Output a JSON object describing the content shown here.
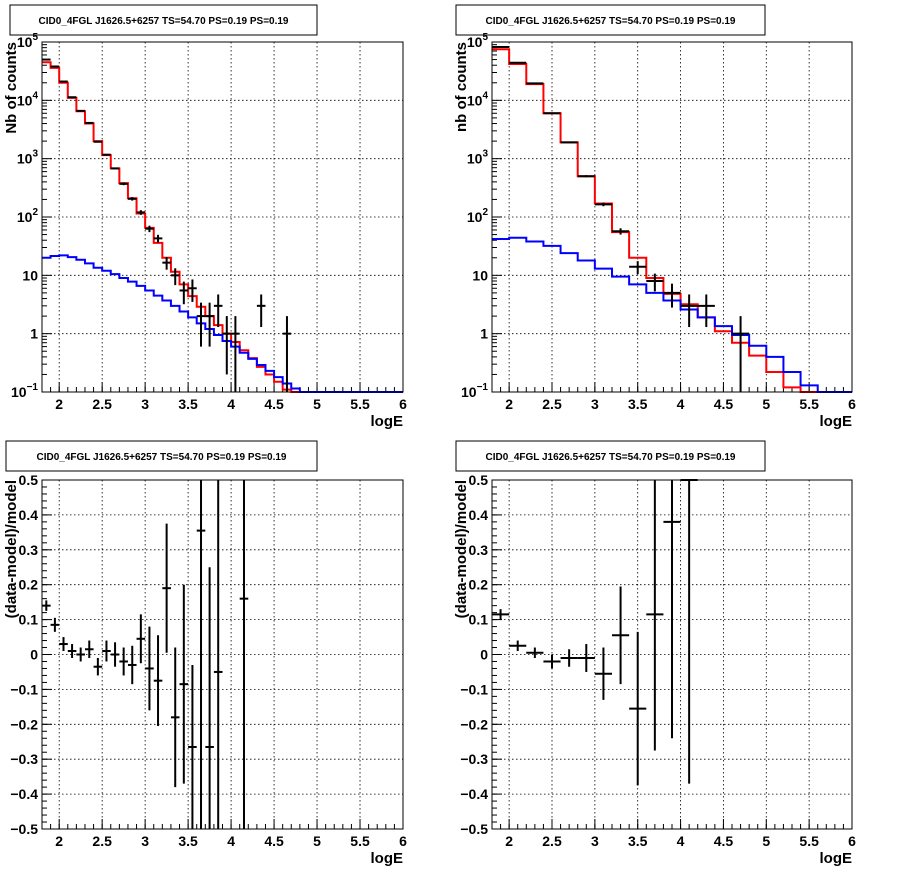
{
  "chart_data": [
    {
      "type": "step-line-with-errorbars",
      "title": "CID0_4FGL J1626.5+6257 TS=54.70 PS=0.19 PS=0.19",
      "xlabel": "logE",
      "ylabel": "Nb of counts",
      "xlim": [
        1.8,
        6.0
      ],
      "ylim": [
        0.1,
        100000
      ],
      "yscale": "log",
      "xticks": [
        2,
        2.5,
        3,
        3.5,
        4,
        4.5,
        5,
        5.5,
        6
      ],
      "xtick_labels": [
        "2",
        "2.5",
        "3",
        "3.5",
        "4",
        "4.5",
        "5",
        "5.5",
        "6"
      ],
      "yticks": [
        0.1,
        1,
        10,
        100,
        1000,
        10000,
        100000
      ],
      "ytick_labels": [
        {
          "base": "10",
          "exp": "−1"
        },
        {
          "base": "1",
          "exp": ""
        },
        {
          "base": "10",
          "exp": ""
        },
        {
          "base": "10",
          "exp": "2"
        },
        {
          "base": "10",
          "exp": "3"
        },
        {
          "base": "10",
          "exp": "4"
        },
        {
          "base": "10",
          "exp": "5"
        }
      ],
      "grid": true,
      "bin_edges": [
        1.8,
        1.9,
        2.0,
        2.1,
        2.2,
        2.3,
        2.4,
        2.5,
        2.6,
        2.7,
        2.8,
        2.9,
        3.0,
        3.1,
        3.2,
        3.3,
        3.4,
        3.5,
        3.6,
        3.7,
        3.8,
        3.9,
        4.0,
        4.1,
        4.2,
        4.3,
        4.4,
        4.5,
        4.6,
        4.7,
        4.8,
        4.9,
        5.0,
        5.1,
        5.2,
        5.3,
        5.4,
        5.5,
        5.6,
        5.7,
        5.8,
        5.9,
        6.0
      ],
      "series": [
        {
          "color": "#ff0000",
          "style": "step",
          "values": [
            45000,
            36000,
            20000,
            11000,
            6500,
            4000,
            2000,
            1150,
            680,
            380,
            210,
            115,
            65,
            36,
            20,
            11.5,
            7,
            4.4,
            2.9,
            2.0,
            1.4,
            1.0,
            0.72,
            0.52,
            0.38,
            0.27,
            0.2,
            0.15,
            0.11,
            0.1,
            0.1,
            0.1,
            0.1,
            0.1,
            0.1,
            0.1,
            0.1,
            0.1,
            0.1,
            0.1,
            0.1,
            0.1
          ]
        },
        {
          "color": "#0000ff",
          "style": "step",
          "values": [
            20,
            21.5,
            22,
            20.5,
            18.5,
            16,
            13.5,
            12,
            10.5,
            9,
            7.8,
            6.6,
            5.5,
            4.5,
            3.7,
            3.0,
            2.4,
            1.9,
            1.5,
            1.2,
            0.95,
            0.75,
            0.6,
            0.47,
            0.37,
            0.29,
            0.23,
            0.18,
            0.14,
            0.115,
            0.1,
            0.1,
            0.1,
            0.1,
            0.1,
            0.1,
            0.1,
            0.1,
            0.1,
            0.1,
            0.1,
            0.1
          ]
        }
      ],
      "data_points": {
        "color": "#000000",
        "points": [
          {
            "x": 1.85,
            "y": 50000,
            "lo": 49500,
            "hi": 50500,
            "xw": 0.05
          },
          {
            "x": 1.95,
            "y": 38000,
            "lo": 37500,
            "hi": 38500,
            "xw": 0.05
          },
          {
            "x": 2.05,
            "y": 21000,
            "lo": 20700,
            "hi": 21300,
            "xw": 0.05
          },
          {
            "x": 2.15,
            "y": 11300,
            "lo": 11100,
            "hi": 11500,
            "xw": 0.05
          },
          {
            "x": 2.25,
            "y": 6600,
            "lo": 6500,
            "hi": 6700,
            "xw": 0.05
          },
          {
            "x": 2.35,
            "y": 4100,
            "lo": 4030,
            "hi": 4170,
            "xw": 0.05
          },
          {
            "x": 2.45,
            "y": 1950,
            "lo": 1900,
            "hi": 2000,
            "xw": 0.05
          },
          {
            "x": 2.55,
            "y": 1170,
            "lo": 1135,
            "hi": 1205,
            "xw": 0.05
          },
          {
            "x": 2.65,
            "y": 680,
            "lo": 655,
            "hi": 705,
            "xw": 0.05
          },
          {
            "x": 2.75,
            "y": 370,
            "lo": 351,
            "hi": 389,
            "xw": 0.05
          },
          {
            "x": 2.85,
            "y": 205,
            "lo": 191,
            "hi": 219,
            "xw": 0.05
          },
          {
            "x": 2.95,
            "y": 120,
            "lo": 109,
            "hi": 131,
            "xw": 0.05
          },
          {
            "x": 3.05,
            "y": 63,
            "lo": 55,
            "hi": 71,
            "xw": 0.05
          },
          {
            "x": 3.15,
            "y": 43,
            "lo": 36.5,
            "hi": 49.5,
            "xw": 0.05
          },
          {
            "x": 3.25,
            "y": 16.5,
            "lo": 12.5,
            "hi": 20.5,
            "xw": 0.05
          },
          {
            "x": 3.35,
            "y": 10,
            "lo": 6.8,
            "hi": 13.2,
            "xw": 0.05
          },
          {
            "x": 3.45,
            "y": 5.5,
            "lo": 3.2,
            "hi": 7.8,
            "xw": 0.05
          },
          {
            "x": 3.55,
            "y": 6,
            "lo": 3.5,
            "hi": 8.5,
            "xw": 0.05
          },
          {
            "x": 3.65,
            "y": 2,
            "lo": 0.6,
            "hi": 3.4,
            "xw": 0.05
          },
          {
            "x": 3.75,
            "y": 2,
            "lo": 0.6,
            "hi": 3.4,
            "xw": 0.05
          },
          {
            "x": 3.85,
            "y": 3,
            "lo": 1.3,
            "hi": 4.7,
            "xw": 0.05
          },
          {
            "x": 3.95,
            "y": 1,
            "lo": 0.2,
            "hi": 2.0,
            "xw": 0.05
          },
          {
            "x": 4.05,
            "y": 1,
            "lo": 0.1,
            "hi": 2.0,
            "xw": 0.05
          },
          {
            "x": 4.35,
            "y": 3,
            "lo": 1.3,
            "hi": 4.7,
            "xw": 0.05
          },
          {
            "x": 4.65,
            "y": 1,
            "lo": 0.1,
            "hi": 2.0,
            "xw": 0.05
          }
        ]
      }
    },
    {
      "type": "step-line-with-errorbars",
      "title": "CID0_4FGL J1626.5+6257 TS=54.70 PS=0.19 PS=0.19",
      "xlabel": "logE",
      "ylabel": "nb of counts",
      "xlim": [
        1.8,
        6.0
      ],
      "ylim": [
        0.1,
        100000
      ],
      "yscale": "log",
      "xticks": [
        2,
        2.5,
        3,
        3.5,
        4,
        4.5,
        5,
        5.5,
        6
      ],
      "xtick_labels": [
        "2",
        "2.5",
        "3",
        "3.5",
        "4",
        "4.5",
        "5",
        "5.5",
        "6"
      ],
      "yticks": [
        0.1,
        1,
        10,
        100,
        1000,
        10000,
        100000
      ],
      "ytick_labels": [
        {
          "base": "10",
          "exp": "−1"
        },
        {
          "base": "1",
          "exp": ""
        },
        {
          "base": "10",
          "exp": ""
        },
        {
          "base": "10",
          "exp": "2"
        },
        {
          "base": "10",
          "exp": "3"
        },
        {
          "base": "10",
          "exp": "4"
        },
        {
          "base": "10",
          "exp": "5"
        }
      ],
      "grid": true,
      "bin_edges": [
        1.8,
        2.0,
        2.2,
        2.4,
        2.6,
        2.8,
        3.0,
        3.2,
        3.4,
        3.6,
        3.8,
        4.0,
        4.2,
        4.4,
        4.6,
        4.8,
        5.0,
        5.2,
        5.4,
        5.6,
        5.8,
        6.0
      ],
      "series": [
        {
          "color": "#ff0000",
          "style": "step",
          "values": [
            75000,
            42000,
            19000,
            6000,
            1900,
            500,
            170,
            55,
            20,
            9,
            4.8,
            3.2,
            1.9,
            1.1,
            0.7,
            0.42,
            0.22,
            0.12,
            0.1,
            0.1,
            0.1
          ]
        },
        {
          "color": "#0000ff",
          "style": "step",
          "values": [
            42,
            44,
            38,
            32,
            24,
            18,
            13,
            9.5,
            7,
            5,
            3.7,
            2.6,
            1.9,
            1.35,
            0.95,
            0.62,
            0.4,
            0.22,
            0.13,
            0.1,
            0.1
          ]
        }
      ],
      "data_points": {
        "color": "#000000",
        "points": [
          {
            "x": 1.9,
            "y": 82000,
            "lo": 81400,
            "hi": 82600,
            "xw": 0.1
          },
          {
            "x": 2.1,
            "y": 44000,
            "lo": 43600,
            "hi": 44400,
            "xw": 0.1
          },
          {
            "x": 2.3,
            "y": 19500,
            "lo": 19250,
            "hi": 19750,
            "xw": 0.1
          },
          {
            "x": 2.5,
            "y": 6000,
            "lo": 5920,
            "hi": 6080,
            "xw": 0.1
          },
          {
            "x": 2.7,
            "y": 1900,
            "lo": 1860,
            "hi": 1940,
            "xw": 0.1
          },
          {
            "x": 2.9,
            "y": 500,
            "lo": 480,
            "hi": 520,
            "xw": 0.1
          },
          {
            "x": 3.1,
            "y": 165,
            "lo": 153,
            "hi": 177,
            "xw": 0.1
          },
          {
            "x": 3.3,
            "y": 57,
            "lo": 50,
            "hi": 64,
            "xw": 0.1
          },
          {
            "x": 3.5,
            "y": 14,
            "lo": 10.5,
            "hi": 17.5,
            "xw": 0.1
          },
          {
            "x": 3.7,
            "y": 8,
            "lo": 5.3,
            "hi": 10.7,
            "xw": 0.1
          },
          {
            "x": 3.9,
            "y": 5,
            "lo": 2.8,
            "hi": 7.2,
            "xw": 0.1
          },
          {
            "x": 4.1,
            "y": 3,
            "lo": 1.3,
            "hi": 4.7,
            "xw": 0.1
          },
          {
            "x": 4.3,
            "y": 3,
            "lo": 1.3,
            "hi": 4.7,
            "xw": 0.1
          },
          {
            "x": 4.7,
            "y": 1,
            "lo": 0.1,
            "hi": 2.0,
            "xw": 0.1
          }
        ]
      }
    },
    {
      "type": "errorbars",
      "title": "CID0_4FGL J1626.5+6257 TS=54.70 PS=0.19 PS=0.19",
      "xlabel": "logE",
      "ylabel": "(data-model)/model",
      "xlim": [
        1.8,
        6.0
      ],
      "ylim": [
        -0.5,
        0.5
      ],
      "yscale": "linear",
      "xticks": [
        2,
        2.5,
        3,
        3.5,
        4,
        4.5,
        5,
        5.5,
        6
      ],
      "xtick_labels": [
        "2",
        "2.5",
        "3",
        "3.5",
        "4",
        "4.5",
        "5",
        "5.5",
        "6"
      ],
      "yticks": [
        -0.5,
        -0.4,
        -0.3,
        -0.2,
        -0.1,
        0,
        0.1,
        0.2,
        0.3,
        0.4,
        0.5
      ],
      "ytick_labels": [
        {
          "base": "−0.5",
          "exp": ""
        },
        {
          "base": "−0.4",
          "exp": ""
        },
        {
          "base": "−0.3",
          "exp": ""
        },
        {
          "base": "−0.2",
          "exp": ""
        },
        {
          "base": "−0.1",
          "exp": ""
        },
        {
          "base": "0",
          "exp": ""
        },
        {
          "base": "0.1",
          "exp": ""
        },
        {
          "base": "0.2",
          "exp": ""
        },
        {
          "base": "0.3",
          "exp": ""
        },
        {
          "base": "0.4",
          "exp": ""
        },
        {
          "base": "0.5",
          "exp": ""
        }
      ],
      "grid": true,
      "data_points": {
        "color": "#000000",
        "points": [
          {
            "x": 1.85,
            "y": 0.14,
            "lo": 0.125,
            "hi": 0.155,
            "xw": 0.05
          },
          {
            "x": 1.95,
            "y": 0.085,
            "lo": 0.065,
            "hi": 0.105,
            "xw": 0.05
          },
          {
            "x": 2.05,
            "y": 0.03,
            "lo": 0.01,
            "hi": 0.05,
            "xw": 0.05
          },
          {
            "x": 2.15,
            "y": 0.01,
            "lo": -0.01,
            "hi": 0.03,
            "xw": 0.05
          },
          {
            "x": 2.25,
            "y": 0.0,
            "lo": -0.02,
            "hi": 0.02,
            "xw": 0.05
          },
          {
            "x": 2.35,
            "y": 0.015,
            "lo": -0.01,
            "hi": 0.04,
            "xw": 0.05
          },
          {
            "x": 2.45,
            "y": -0.035,
            "lo": -0.06,
            "hi": -0.01,
            "xw": 0.05
          },
          {
            "x": 2.55,
            "y": 0.01,
            "lo": -0.02,
            "hi": 0.04,
            "xw": 0.05
          },
          {
            "x": 2.65,
            "y": 0.0,
            "lo": -0.035,
            "hi": 0.035,
            "xw": 0.05
          },
          {
            "x": 2.75,
            "y": -0.02,
            "lo": -0.06,
            "hi": 0.02,
            "xw": 0.05
          },
          {
            "x": 2.85,
            "y": -0.03,
            "lo": -0.085,
            "hi": 0.025,
            "xw": 0.05
          },
          {
            "x": 2.95,
            "y": 0.045,
            "lo": -0.025,
            "hi": 0.115,
            "xw": 0.05
          },
          {
            "x": 3.05,
            "y": -0.04,
            "lo": -0.16,
            "hi": 0.08,
            "xw": 0.05
          },
          {
            "x": 3.15,
            "y": -0.075,
            "lo": -0.205,
            "hi": 0.055,
            "xw": 0.05
          },
          {
            "x": 3.25,
            "y": 0.19,
            "lo": 0.005,
            "hi": 0.375,
            "xw": 0.05
          },
          {
            "x": 3.35,
            "y": -0.18,
            "lo": -0.38,
            "hi": 0.02,
            "xw": 0.05
          },
          {
            "x": 3.45,
            "y": -0.085,
            "lo": -0.37,
            "hi": 0.2,
            "xw": 0.05
          },
          {
            "x": 3.55,
            "y": -0.265,
            "lo": -0.5,
            "hi": -0.03,
            "xw": 0.05
          },
          {
            "x": 3.65,
            "y": 0.355,
            "lo": -0.5,
            "hi": 0.5,
            "xw": 0.05
          },
          {
            "x": 3.75,
            "y": -0.265,
            "lo": -0.5,
            "hi": 0.25,
            "xw": 0.05
          },
          {
            "x": 3.85,
            "y": -0.05,
            "lo": -0.5,
            "hi": 0.5,
            "xw": 0.05
          },
          {
            "x": 4.15,
            "y": 0.16,
            "lo": -0.5,
            "hi": 0.5,
            "xw": 0.05
          }
        ]
      }
    },
    {
      "type": "errorbars",
      "title": "CID0_4FGL J1626.5+6257 TS=54.70 PS=0.19 PS=0.19",
      "xlabel": "logE",
      "ylabel": "(data-model)/model",
      "xlim": [
        1.8,
        6.0
      ],
      "ylim": [
        -0.5,
        0.5
      ],
      "yscale": "linear",
      "xticks": [
        2,
        2.5,
        3,
        3.5,
        4,
        4.5,
        5,
        5.5,
        6
      ],
      "xtick_labels": [
        "2",
        "2.5",
        "3",
        "3.5",
        "4",
        "4.5",
        "5",
        "5.5",
        "6"
      ],
      "yticks": [
        -0.5,
        -0.4,
        -0.3,
        -0.2,
        -0.1,
        0,
        0.1,
        0.2,
        0.3,
        0.4,
        0.5
      ],
      "ytick_labels": [
        {
          "base": "−0.5",
          "exp": ""
        },
        {
          "base": "−0.4",
          "exp": ""
        },
        {
          "base": "−0.3",
          "exp": ""
        },
        {
          "base": "−0.2",
          "exp": ""
        },
        {
          "base": "−0.1",
          "exp": ""
        },
        {
          "base": "0",
          "exp": ""
        },
        {
          "base": "0.1",
          "exp": ""
        },
        {
          "base": "0.2",
          "exp": ""
        },
        {
          "base": "0.3",
          "exp": ""
        },
        {
          "base": "0.4",
          "exp": ""
        },
        {
          "base": "0.5",
          "exp": ""
        }
      ],
      "grid": true,
      "data_points": {
        "color": "#000000",
        "points": [
          {
            "x": 1.9,
            "y": 0.115,
            "lo": 0.1,
            "hi": 0.13,
            "xw": 0.1
          },
          {
            "x": 2.1,
            "y": 0.025,
            "lo": 0.01,
            "hi": 0.04,
            "xw": 0.1
          },
          {
            "x": 2.3,
            "y": 0.005,
            "lo": -0.01,
            "hi": 0.02,
            "xw": 0.1
          },
          {
            "x": 2.5,
            "y": -0.02,
            "lo": -0.04,
            "hi": 0.0,
            "xw": 0.1
          },
          {
            "x": 2.7,
            "y": -0.01,
            "lo": -0.035,
            "hi": 0.015,
            "xw": 0.1
          },
          {
            "x": 2.9,
            "y": -0.01,
            "lo": -0.05,
            "hi": 0.03,
            "xw": 0.1
          },
          {
            "x": 3.1,
            "y": -0.055,
            "lo": -0.13,
            "hi": 0.02,
            "xw": 0.1
          },
          {
            "x": 3.3,
            "y": 0.055,
            "lo": -0.085,
            "hi": 0.195,
            "xw": 0.1
          },
          {
            "x": 3.5,
            "y": -0.155,
            "lo": -0.375,
            "hi": 0.065,
            "xw": 0.1
          },
          {
            "x": 3.7,
            "y": 0.115,
            "lo": -0.275,
            "hi": 0.5,
            "xw": 0.1
          },
          {
            "x": 3.9,
            "y": 0.38,
            "lo": -0.24,
            "hi": 0.5,
            "xw": 0.1
          },
          {
            "x": 4.1,
            "y": 0.5,
            "lo": -0.37,
            "hi": 0.5,
            "xw": 0.1
          }
        ]
      }
    }
  ]
}
